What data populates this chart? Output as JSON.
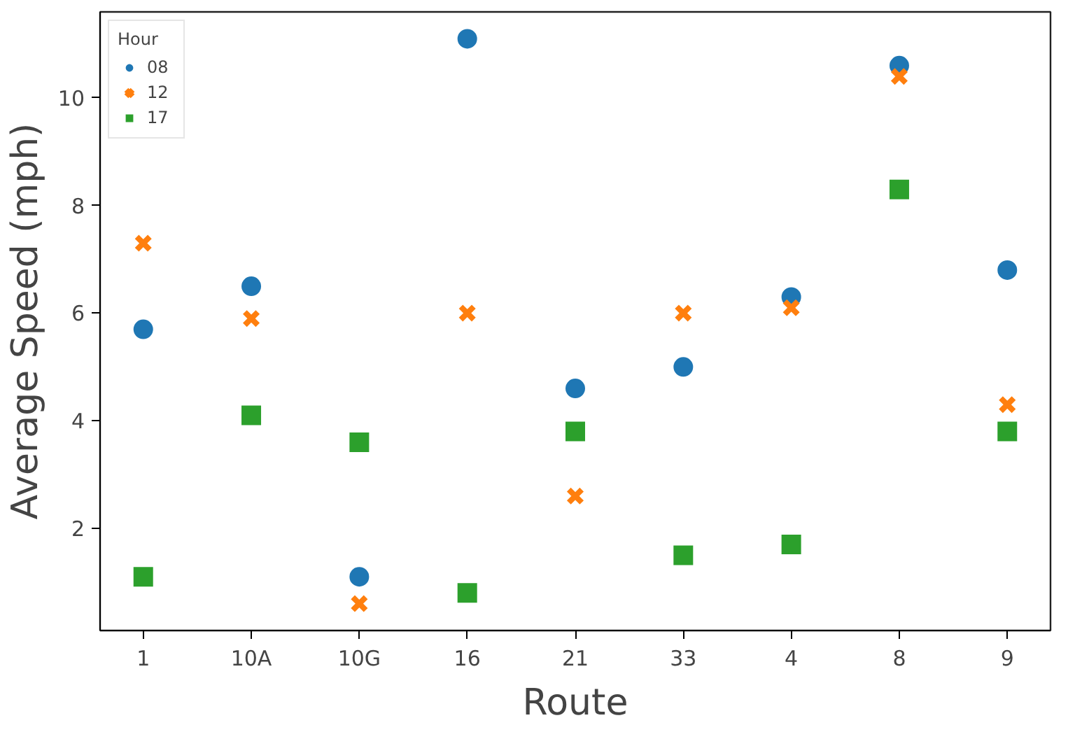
{
  "chart_data": {
    "type": "scatter",
    "xlabel": "Route",
    "ylabel": "Average Speed (mph)",
    "legend_title": "Hour",
    "legend": "top left",
    "grid": false,
    "categories": [
      "1",
      "10A",
      "10G",
      "16",
      "21",
      "33",
      "4",
      "8",
      "9"
    ],
    "ylim": [
      0.1,
      11.6
    ],
    "yticks": [
      2,
      4,
      6,
      8,
      10
    ],
    "series": [
      {
        "name": "08",
        "color": "#1f77b4",
        "marker": "circle",
        "values": [
          5.7,
          6.5,
          1.1,
          11.1,
          4.6,
          5.0,
          6.3,
          10.6,
          6.8
        ]
      },
      {
        "name": "12",
        "color": "#ff7f0e",
        "marker": "cross",
        "values": [
          7.3,
          5.9,
          0.6,
          6.0,
          2.6,
          6.0,
          6.1,
          10.4,
          4.3
        ]
      },
      {
        "name": "17",
        "color": "#2ca02c",
        "marker": "square",
        "values": [
          1.1,
          4.1,
          3.6,
          0.8,
          3.8,
          1.5,
          1.7,
          8.3,
          3.8
        ]
      }
    ]
  }
}
